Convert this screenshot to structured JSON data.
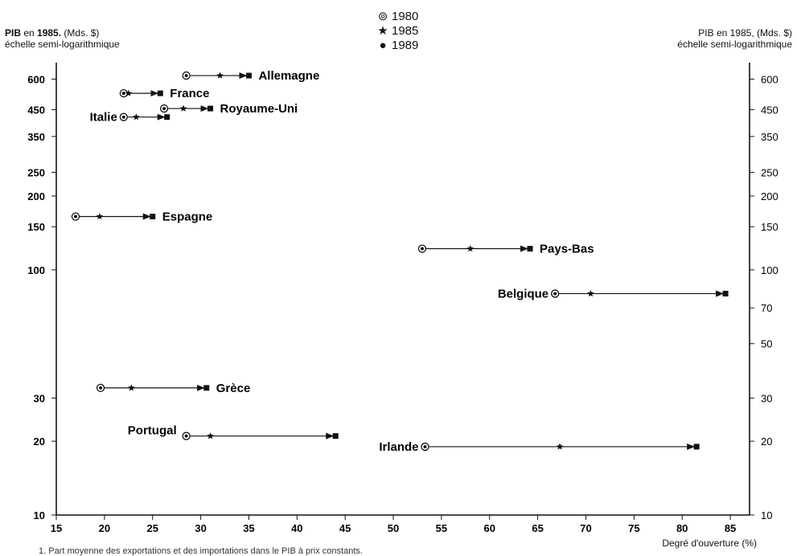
{
  "chart_data": {
    "type": "scatter",
    "ylabel_left": {
      "line1_prefix": "PIB",
      "line1_mid": " en ",
      "line1_year": "1985.",
      "line1_unit": " (Mds. $)",
      "line2": "échelle semi-logarithmique"
    },
    "ylabel_right": {
      "line1": "PIB en 1985, (Mds. $)",
      "line2": "échelle semi-logarithmique"
    },
    "xlabel": "Degré d'ouverture (%)",
    "footnote": "1. Part moyenne des exportations et des importations dans le PIB à prix constants.",
    "xlim": [
      15,
      87
    ],
    "x_ticks": [
      15,
      20,
      25,
      30,
      35,
      40,
      45,
      50,
      55,
      60,
      65,
      70,
      75,
      80,
      85
    ],
    "y_scale": "log",
    "y_ticks_left": [
      600,
      450,
      350,
      250,
      200,
      150,
      100,
      30,
      20,
      10
    ],
    "y_ticks_right": [
      600,
      450,
      350,
      250,
      200,
      150,
      100,
      70,
      50,
      30,
      20,
      10
    ],
    "legend": [
      {
        "symbol": "⊚",
        "label": "1980"
      },
      {
        "symbol": "★",
        "label": "1985"
      },
      {
        "symbol": "●",
        "label": "1989"
      }
    ],
    "series": [
      {
        "name": "Allemagne",
        "gdp": 620,
        "x1980": 28.5,
        "x1985": 32,
        "x1989": 35
      },
      {
        "name": "France",
        "gdp": 525,
        "x1980": 22,
        "x1985": 22.5,
        "x1989": 25.8
      },
      {
        "name": "Royaume-Uni",
        "gdp": 455,
        "x1980": 26.2,
        "x1985": 28.2,
        "x1989": 31
      },
      {
        "name": "Italie",
        "gdp": 420,
        "x1980": 22,
        "x1985": 23.3,
        "x1989": 26.5
      },
      {
        "name": "Espagne",
        "gdp": 165,
        "x1980": 17,
        "x1985": 19.5,
        "x1989": 25
      },
      {
        "name": "Pays-Bas",
        "gdp": 122,
        "x1980": 53,
        "x1985": 58,
        "x1989": 64.2
      },
      {
        "name": "Belgique",
        "gdp": 80,
        "x1980": 66.8,
        "x1985": 70.5,
        "x1989": 84.5
      },
      {
        "name": "Grèce",
        "gdp": 33,
        "x1980": 19.6,
        "x1985": 22.8,
        "x1989": 30.6
      },
      {
        "name": "Portugal",
        "gdp": 21,
        "x1980": 28.5,
        "x1985": 31,
        "x1989": 44
      },
      {
        "name": "Irlande",
        "gdp": 19,
        "x1980": 53.3,
        "x1985": 67.3,
        "x1989": 81.5
      }
    ]
  }
}
